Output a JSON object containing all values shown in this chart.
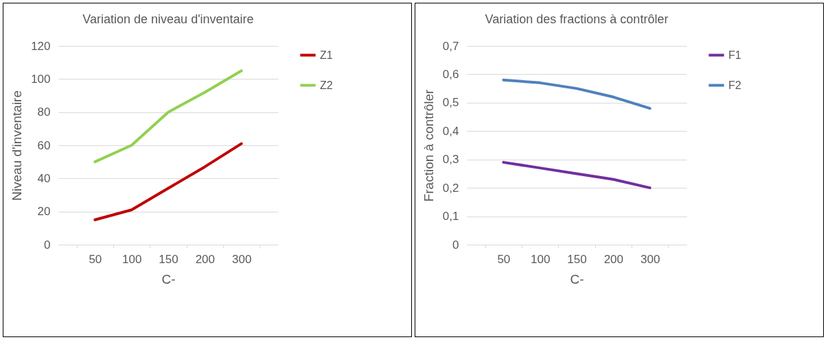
{
  "chart_data": [
    {
      "type": "line",
      "title": "Variation de niveau d'inventaire",
      "xlabel": "C-",
      "ylabel": "Niveau d'inventaire",
      "categories": [
        "50",
        "100",
        "150",
        "200",
        "300"
      ],
      "series": [
        {
          "name": "Z1",
          "color": "#c00000",
          "values": [
            15,
            21,
            34,
            47,
            61
          ]
        },
        {
          "name": "Z2",
          "color": "#92d050",
          "values": [
            50,
            60,
            80,
            92,
            105
          ]
        }
      ],
      "ylim": [
        0,
        120
      ],
      "yticks": [
        0,
        20,
        40,
        60,
        80,
        100,
        120
      ],
      "grid": "y",
      "legend": "right",
      "marker": "none",
      "line_style": "solid"
    },
    {
      "type": "line",
      "title": "Variation des fractions à contrôler",
      "xlabel": "C-",
      "ylabel": "Fraction à contrôler",
      "categories": [
        "50",
        "100",
        "150",
        "200",
        "300"
      ],
      "series": [
        {
          "name": "F1",
          "color": "#7030a0",
          "values": [
            0.29,
            0.27,
            0.25,
            0.23,
            0.2
          ]
        },
        {
          "name": "F2",
          "color": "#4f81bd",
          "values": [
            0.58,
            0.57,
            0.55,
            0.52,
            0.48
          ]
        }
      ],
      "ylim": [
        0,
        0.7
      ],
      "yticks": [
        0,
        {
          "value": 0.1,
          "label": "0,1"
        },
        {
          "value": 0.2,
          "label": "0,2"
        },
        {
          "value": 0.3,
          "label": "0,3"
        },
        {
          "value": 0.4,
          "label": "0,4"
        },
        {
          "value": 0.5,
          "label": "0,5"
        },
        {
          "value": 0.6,
          "label": "0,6"
        },
        {
          "value": 0.7,
          "label": "0,7"
        }
      ],
      "grid": "y",
      "legend": "right",
      "marker": "none",
      "line_style": "solid"
    }
  ]
}
